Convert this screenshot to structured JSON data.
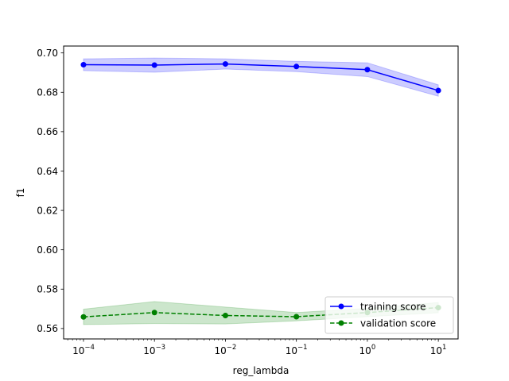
{
  "chart_data": {
    "type": "line",
    "xscale": "log",
    "xlabel": "reg_lambda",
    "ylabel": "f1",
    "x": [
      0.0001,
      0.001,
      0.01,
      0.1,
      1,
      10
    ],
    "xlim": [
      5.25e-05,
      19
    ],
    "ylim": [
      0.5547,
      0.7035
    ],
    "yticks": [
      0.56,
      0.58,
      0.6,
      0.62,
      0.64,
      0.66,
      0.68,
      0.7
    ],
    "ytick_labels": [
      "0.56",
      "0.58",
      "0.60",
      "0.62",
      "0.64",
      "0.66",
      "0.68",
      "0.70"
    ],
    "xticks": [
      0.0001,
      0.001,
      0.01,
      0.1,
      1,
      10
    ],
    "xtick_labels": [
      {
        "base": "10",
        "exp": "−4"
      },
      {
        "base": "10",
        "exp": "−3"
      },
      {
        "base": "10",
        "exp": "−2"
      },
      {
        "base": "10",
        "exp": "−1"
      },
      {
        "base": "10",
        "exp": "0"
      },
      {
        "base": "10",
        "exp": "1"
      }
    ],
    "grid": false,
    "legend_position": "lower-right",
    "series": [
      {
        "name": "training score",
        "color": "#0000ff",
        "linestyle": "solid",
        "marker": "circle",
        "values": [
          0.694,
          0.6938,
          0.6944,
          0.6931,
          0.6915,
          0.6809
        ],
        "band_low": [
          0.691,
          0.6902,
          0.6918,
          0.6905,
          0.688,
          0.678
        ],
        "band_high": [
          0.697,
          0.6974,
          0.697,
          0.6957,
          0.695,
          0.6838
        ]
      },
      {
        "name": "validation score",
        "color": "#008000",
        "linestyle": "dashed",
        "marker": "circle",
        "values": [
          0.5659,
          0.5681,
          0.5666,
          0.566,
          0.5681,
          0.5706
        ],
        "band_low": [
          0.562,
          0.5625,
          0.5623,
          0.5639,
          0.566,
          0.568
        ],
        "band_high": [
          0.5698,
          0.5737,
          0.5709,
          0.5681,
          0.5702,
          0.5732
        ]
      }
    ]
  }
}
